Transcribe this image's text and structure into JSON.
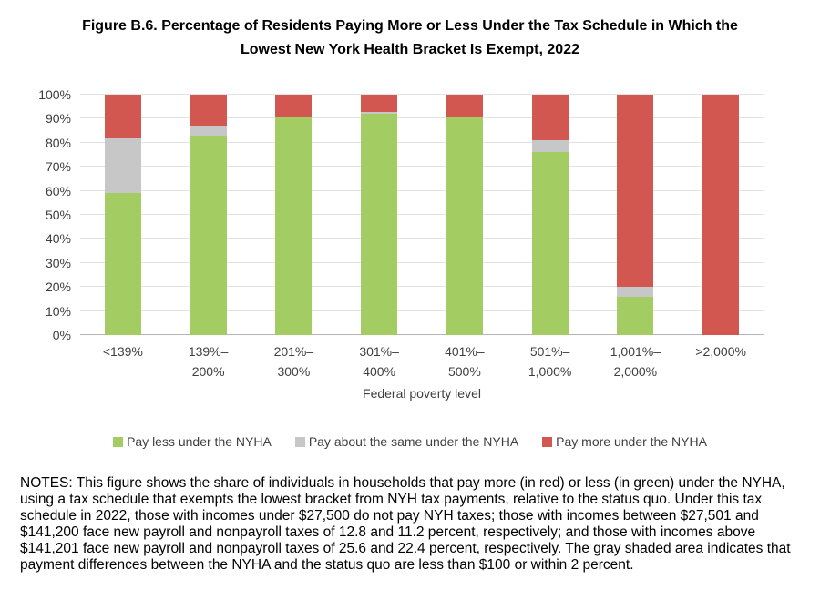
{
  "chart_data": {
    "type": "bar",
    "stacked": true,
    "title": "Figure B.6. Percentage of Residents Paying More or Less Under the Tax Schedule in Which the\nLowest New York Health Bracket Is Exempt, 2022",
    "xlabel": "Federal poverty level",
    "ylabel": "",
    "ylim": [
      0,
      100
    ],
    "grid": true,
    "legend_position": "bottom",
    "y_ticks": [
      "0%",
      "10%",
      "20%",
      "30%",
      "40%",
      "50%",
      "60%",
      "70%",
      "80%",
      "90%",
      "100%"
    ],
    "categories": [
      "<139%",
      "139%–\n200%",
      "201%–\n300%",
      "301%–\n400%",
      "401%–\n500%",
      "501%–\n1,000%",
      "1,001%–\n2,000%",
      ">2,000%"
    ],
    "series": [
      {
        "name": "Pay less under the NYHA",
        "color": "#a3cd62",
        "values": [
          59,
          83,
          91,
          92,
          91,
          76,
          16,
          0
        ]
      },
      {
        "name": "Pay about the same under the NYHA",
        "color": "#c7c7c7",
        "values": [
          23,
          4,
          0,
          1,
          0,
          5,
          4,
          0
        ]
      },
      {
        "name": "Pay more under the NYHA",
        "color": "#d25750",
        "values": [
          18,
          13,
          9,
          7,
          9,
          19,
          80,
          100
        ]
      }
    ]
  },
  "notes": "NOTES: This figure shows the share of individuals in households that pay more (in red) or less (in green) under the NYHA, using a tax schedule that exempts the lowest bracket from NYH tax payments, relative to the status quo. Under this tax schedule in 2022, those with incomes under $27,500 do not pay NYH taxes; those with incomes between $27,501 and $141,200 face new payroll and nonpayroll taxes of 12.8 and 11.2 percent, respectively; and those with incomes above $141,201 face new payroll and nonpayroll taxes of 25.6 and 22.4 percent, respectively. The gray shaded area indicates that payment differences between the NYHA and the status quo are less than $100 or within 2 percent."
}
